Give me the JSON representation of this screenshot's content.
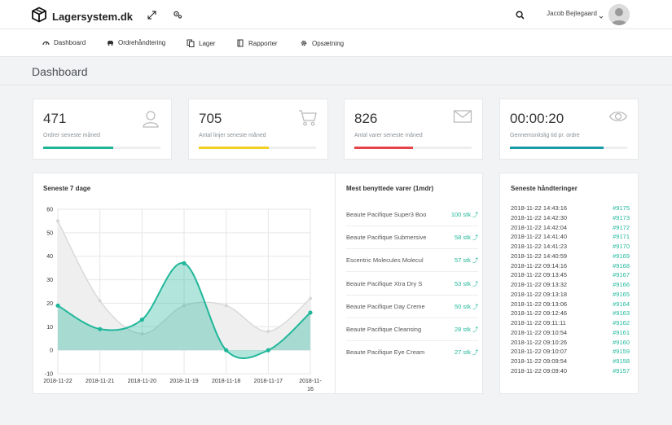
{
  "brand": {
    "name": "Lagersystem.dk"
  },
  "header": {
    "user_name": "Jacob Bejlegaard",
    "icons": [
      "expand-icon",
      "settings-icon",
      "search-icon"
    ]
  },
  "nav": {
    "items": [
      {
        "label": "Dashboard",
        "icon": "dashboard-icon"
      },
      {
        "label": "Ordrehåndtering",
        "icon": "car-icon"
      },
      {
        "label": "Lager",
        "icon": "copy-icon"
      },
      {
        "label": "Rapporter",
        "icon": "book-icon"
      },
      {
        "label": "Opsætning",
        "icon": "gear-icon"
      }
    ]
  },
  "page": {
    "title": "Dashboard"
  },
  "stats": [
    {
      "value": "471",
      "label": "Ordrer seneste måned",
      "progress": 0.6,
      "color": "#1fb494",
      "icon": "user-icon"
    },
    {
      "value": "705",
      "label": "Antal linjer seneste måned",
      "progress": 0.6,
      "color": "#f2d023",
      "icon": "cart-icon"
    },
    {
      "value": "826",
      "label": "Antal varer seneste måned",
      "progress": 0.5,
      "color": "#e5454a",
      "icon": "mail-icon"
    },
    {
      "value": "00:00:20",
      "label": "Gennemsnitslig tid pr. ordre",
      "progress": 0.8,
      "color": "#1a9ba8",
      "icon": "eye-icon"
    }
  ],
  "chart_panel": {
    "title": "Seneste 7 dage"
  },
  "chart_data": {
    "type": "area",
    "categories": [
      "2018-11-22",
      "2018-11-21",
      "2018-11-20",
      "2018-11-19",
      "2018-11-18",
      "2018-11-17",
      "2018-11-16"
    ],
    "tick_labels": [
      "2018-11-22",
      "2018-11-21",
      "2018-11-20",
      "2018-11-19",
      "2018-11-18",
      "2018-11-17",
      "2018-11-\n16"
    ],
    "series": [
      {
        "values": [
          55,
          21,
          7,
          19,
          19,
          8,
          22
        ],
        "color": "#d6d6d6"
      },
      {
        "values": [
          19,
          9,
          13,
          37,
          0,
          0,
          16
        ],
        "color": "#21b79b"
      }
    ],
    "ylim": [
      -10,
      60
    ],
    "yticks": [
      -10,
      0,
      10,
      20,
      30,
      40,
      50,
      60
    ],
    "grid": true
  },
  "top_products": {
    "title": "Mest benyttede varer (1mdr)",
    "items": [
      {
        "name": "Beaute Pacifique Super3 Boo",
        "qty": "100 stk"
      },
      {
        "name": "Beaute Pacifique Submersive",
        "qty": "58 stk"
      },
      {
        "name": "Escentric Molecules Molecul",
        "qty": "57 stk"
      },
      {
        "name": "Beaute Pacifique Xtra Dry S",
        "qty": "53 stk"
      },
      {
        "name": "Beaute Pacifique Day Creme",
        "qty": "50 stk"
      },
      {
        "name": "Beaute Pacifique Cleansing",
        "qty": "28 stk"
      },
      {
        "name": "Beaute Pacifique Eye Cream",
        "qty": "27 stk"
      }
    ]
  },
  "latest_handlings": {
    "title": "Seneste håndteringer",
    "items": [
      {
        "time": "2018-11-22 14:43:16",
        "id": "#9175"
      },
      {
        "time": "2018-11-22 14:42:30",
        "id": "#9173"
      },
      {
        "time": "2018-11-22 14:42:04",
        "id": "#9172"
      },
      {
        "time": "2018-11-22 14:41:40",
        "id": "#9171"
      },
      {
        "time": "2018-11-22 14:41:23",
        "id": "#9170"
      },
      {
        "time": "2018-11-22 14:40:59",
        "id": "#9169"
      },
      {
        "time": "2018-11-22 09:14:16",
        "id": "#9168"
      },
      {
        "time": "2018-11-22 09:13:45",
        "id": "#9167"
      },
      {
        "time": "2018-11-22 09:13:32",
        "id": "#9166"
      },
      {
        "time": "2018-11-22 09:13:18",
        "id": "#9165"
      },
      {
        "time": "2018-11-22 09:13:06",
        "id": "#9164"
      },
      {
        "time": "2018-11-22 09:12:46",
        "id": "#9163"
      },
      {
        "time": "2018-11-22 09:11:11",
        "id": "#9162"
      },
      {
        "time": "2018-11-22 09:10:54",
        "id": "#9161"
      },
      {
        "time": "2018-11-22 09:10:26",
        "id": "#9160"
      },
      {
        "time": "2018-11-22 09:10:07",
        "id": "#9159"
      },
      {
        "time": "2018-11-22 09:09:54",
        "id": "#9158"
      },
      {
        "time": "2018-11-22 09:09:40",
        "id": "#9157"
      }
    ]
  }
}
